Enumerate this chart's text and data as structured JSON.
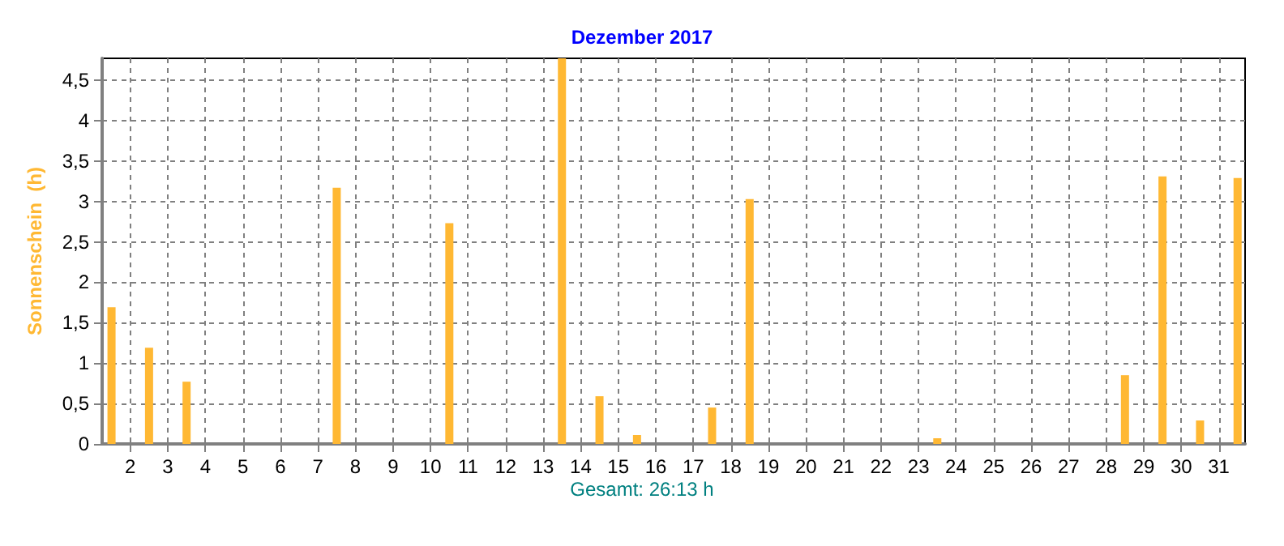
{
  "chart_data": {
    "type": "bar",
    "title": "Dezember 2017",
    "ylabel": "Sonnenschein  (h)",
    "annotations": [
      "Gesamt: 26:13 h"
    ],
    "x": [
      1.5,
      2.5,
      3.5,
      4.5,
      5.5,
      6.5,
      7.5,
      8.5,
      9.5,
      10.5,
      11.5,
      12.5,
      13.5,
      14.5,
      15.5,
      16.5,
      17.5,
      18.5,
      19.5,
      20.5,
      21.5,
      22.5,
      23.5,
      24.5,
      25.5,
      26.5,
      27.5,
      28.5,
      29.5,
      30.5,
      31.5
    ],
    "values": [
      1.69,
      1.19,
      0.77,
      0,
      0,
      0,
      3.17,
      0,
      0,
      2.73,
      0,
      0,
      4.77,
      0.59,
      0.11,
      0,
      0.45,
      3.03,
      0,
      0,
      0,
      0,
      0.07,
      0,
      0,
      0,
      0,
      0.85,
      3.31,
      0.29,
      3.29
    ],
    "color": "#ffb833",
    "xlim": [
      1.25,
      31.7
    ],
    "xticks": [
      2,
      3,
      4,
      5,
      6,
      7,
      8,
      9,
      10,
      11,
      12,
      13,
      14,
      15,
      16,
      17,
      18,
      19,
      20,
      21,
      22,
      23,
      24,
      25,
      26,
      27,
      28,
      29,
      30,
      31
    ],
    "ylim": [
      0,
      4.77
    ],
    "yticks": [
      0,
      {
        "value": 0.5,
        "label": "0,5"
      },
      1,
      {
        "value": 1.5,
        "label": "1,5"
      },
      2,
      {
        "value": 2.5,
        "label": "2,5"
      },
      3,
      {
        "value": 3.5,
        "label": "3,5"
      },
      4,
      {
        "value": 4.5,
        "label": "4,5"
      }
    ],
    "grid": true
  }
}
